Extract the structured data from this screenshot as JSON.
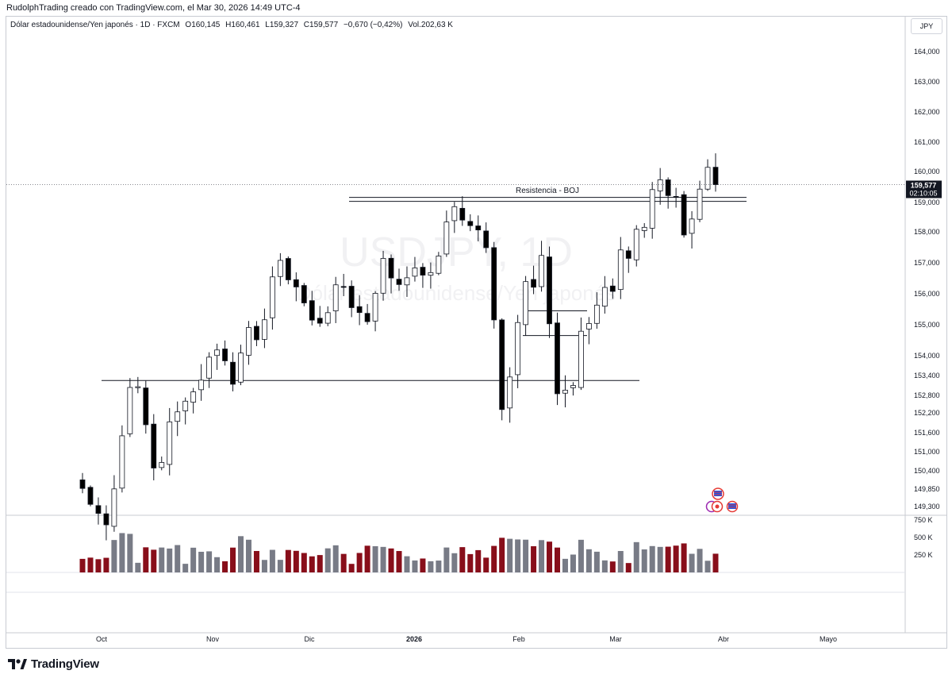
{
  "header": {
    "credit": "RudolphTrading creado con TradingView.com, el Mar 30, 2026 14:49 UTC-4"
  },
  "legend": {
    "symbol": "Dólar estadounidense/Yen japonés · 1D · FXCM",
    "open": "O160,145",
    "high": "H160,461",
    "low": "L159,327",
    "close": "C159,577",
    "change": "−0,670 (−0,42%)",
    "volume": "Vol.202,63 K"
  },
  "currency_button": "JPY",
  "watermark": {
    "ticker": "USDJPY, 1D",
    "name": "Dólar estadounidense/Yen japonés"
  },
  "price_label": {
    "value": "159,577",
    "countdown": "02:10:05"
  },
  "annotations": {
    "resistance_label": "Resistencia - BOJ"
  },
  "branding": {
    "name": "TradingView"
  },
  "colors": {
    "up": "#ffffff",
    "down": "#000000",
    "vol_up": "#787b86",
    "vol_down": "#880e1a",
    "price_tag": "#131722"
  },
  "chart_data": {
    "type": "candlestick",
    "y_ticks": [
      "164,000",
      "163,000",
      "162,000",
      "161,000",
      "160,000",
      "159,000",
      "158,000",
      "157,000",
      "156,000",
      "155,000",
      "154,000",
      "153,400",
      "152,800",
      "152,200",
      "151,600",
      "151,000",
      "150,400",
      "149,850",
      "149,300"
    ],
    "y_tick_values": [
      164.0,
      163.0,
      162.0,
      161.0,
      160.0,
      159.0,
      158.0,
      157.0,
      156.0,
      155.0,
      154.0,
      153.4,
      152.8,
      152.2,
      151.6,
      151.0,
      150.4,
      149.85,
      149.3
    ],
    "volume_ticks": [
      "750 K",
      "500 K",
      "250 K"
    ],
    "volume_tick_values": [
      750,
      500,
      250
    ],
    "x_labels": [
      "Oct",
      "Nov",
      "Dic",
      "2026",
      "Feb",
      "Mar",
      "Abr",
      "Mayo"
    ],
    "levels": [
      {
        "name": "resistance",
        "price": 159.1,
        "label": "Resistencia - BOJ"
      },
      {
        "name": "support",
        "price": 153.25
      },
      {
        "name": "level-155.45",
        "price": 155.45
      },
      {
        "name": "level-154.65",
        "price": 154.65
      }
    ],
    "last_price": 159.577
  }
}
